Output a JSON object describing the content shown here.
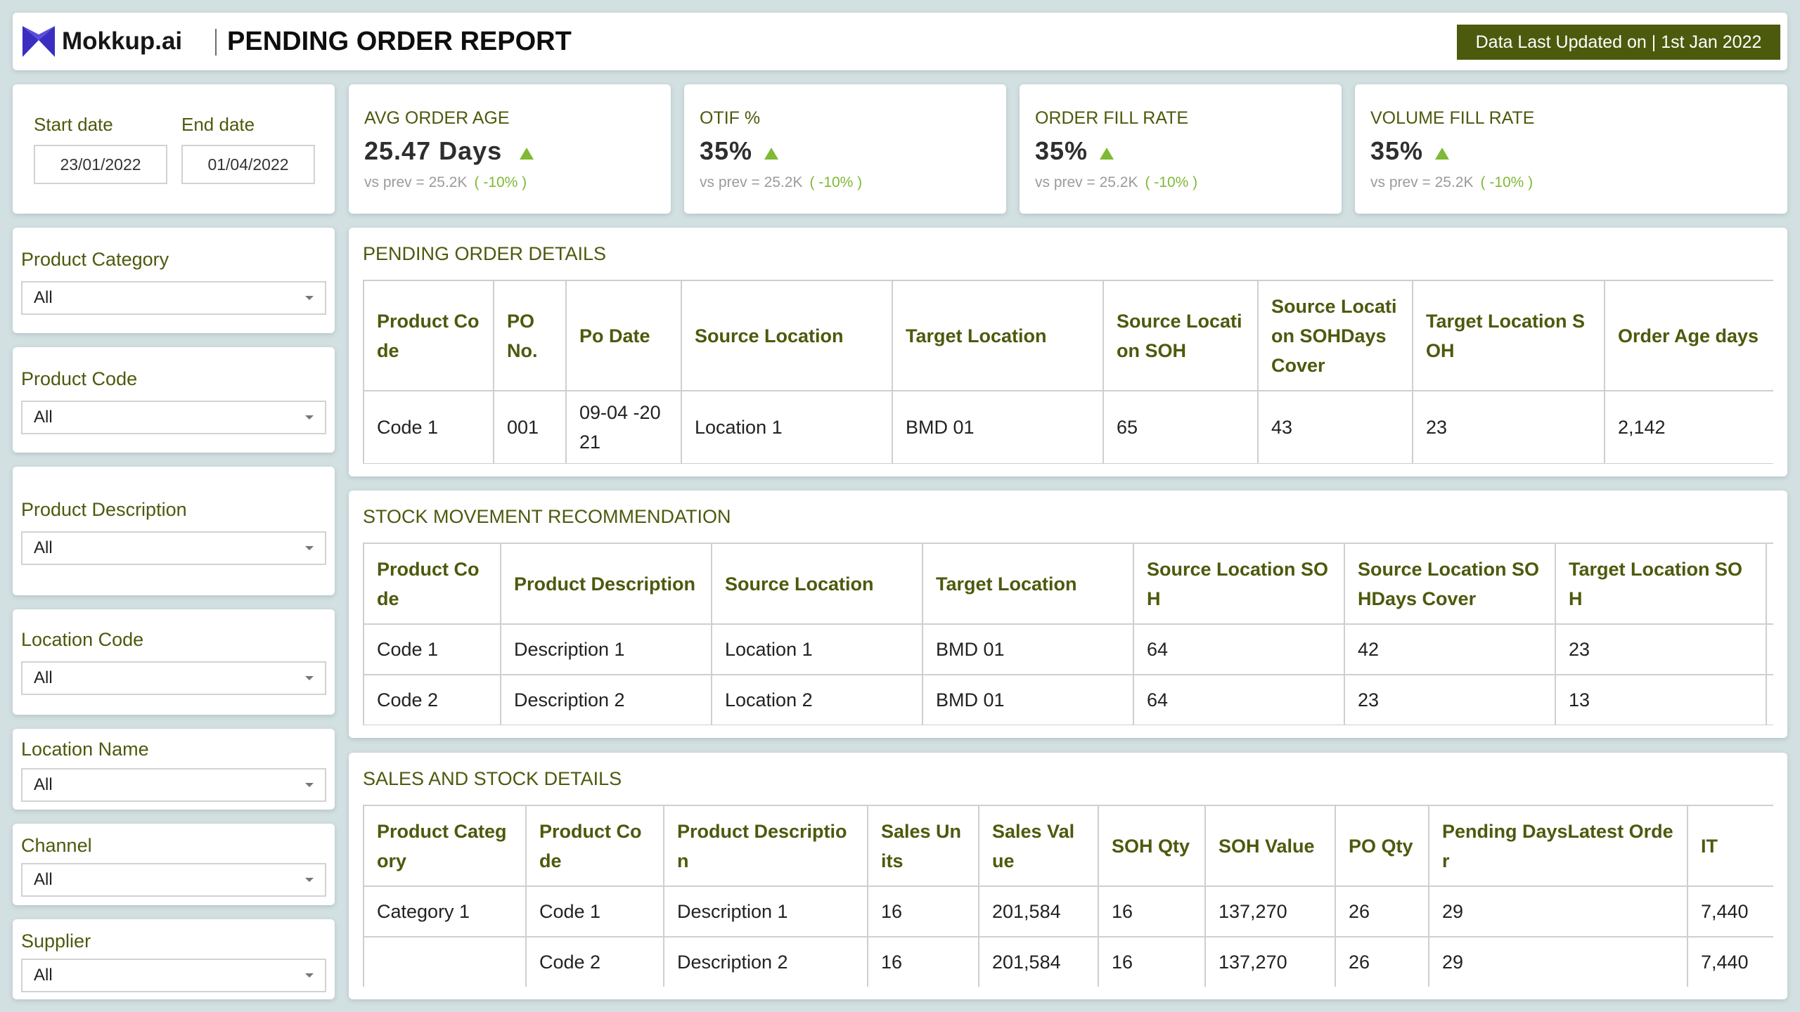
{
  "header": {
    "brand": "Mokkup.ai",
    "title": "PENDING ORDER REPORT",
    "last_updated": "Data Last Updated on | 1st Jan 2022"
  },
  "dates": {
    "start_label": "Start date",
    "start_value": "23/01/2022",
    "end_label": "End date",
    "end_value": "01/04/2022"
  },
  "kpis": [
    {
      "label": "AVG ORDER AGE",
      "value": "25.47 Days",
      "prev_text": "vs prev =  25.2K",
      "change": "( -10% )"
    },
    {
      "label": "OTIF %",
      "value": "35%",
      "prev_text": "vs prev =  25.2K",
      "change": "( -10% )"
    },
    {
      "label": "ORDER FILL RATE",
      "value": "35%",
      "prev_text": "vs prev =  25.2K",
      "change": "( -10% )"
    },
    {
      "label": "VOLUME FILL RATE",
      "value": "35%",
      "prev_text": "vs prev =  25.2K",
      "change": "( -10% )"
    }
  ],
  "filters": [
    {
      "label": "Product Category",
      "value": "All"
    },
    {
      "label": "Product Code",
      "value": "All"
    },
    {
      "label": "Product Description",
      "value": "All"
    },
    {
      "label": "Location Code",
      "value": "All"
    },
    {
      "label": "Location Name",
      "value": "All"
    },
    {
      "label": "Channel",
      "value": "All"
    },
    {
      "label": "Supplier",
      "value": "All"
    }
  ],
  "pending_orders": {
    "title": "PENDING ORDER DETAILS",
    "headers": [
      "Product Co de",
      "PO No.",
      "Po Date",
      "Source Location",
      "Target Location",
      "Source Locati on SOH",
      "Source Locati on SOHDays Cover",
      "Target Location S OH",
      "Order Age days"
    ],
    "rows": [
      [
        "Code 1",
        "001",
        "09-04 -20 21",
        "Location 1",
        "BMD 01",
        "65",
        "43",
        "23",
        "2,142"
      ]
    ]
  },
  "stock_movement": {
    "title": "STOCK MOVEMENT RECOMMENDATION",
    "headers": [
      "Product Co de",
      "Product Description",
      "Source Location",
      "Target Location",
      "Source Location SO H",
      "Source Location SO HDays Cover",
      "Target Location SO H"
    ],
    "rows": [
      [
        "Code 1",
        "Description 1",
        "Location 1",
        "BMD 01",
        "64",
        "42",
        "23"
      ],
      [
        "Code 2",
        "Description 2",
        "Location 2",
        "BMD 01",
        "64",
        "23",
        "13"
      ]
    ]
  },
  "sales_stock": {
    "title": "SALES AND STOCK DETAILS",
    "headers": [
      "Product Categ ory",
      "Product Co de",
      "Product Descriptio n",
      "Sales Un its",
      "Sales Val ue",
      "SOH Qty",
      "SOH Value",
      "PO Qty",
      "Pending DaysLatest Orde r",
      "IT"
    ],
    "rows": [
      [
        "Category 1",
        "Code 1",
        "Description 1",
        "16",
        "201,584",
        "16",
        "137,270",
        "26",
        "29",
        "7,440"
      ],
      [
        "",
        "Code 2",
        "Description 2",
        "16",
        "201,584",
        "16",
        "137,270",
        "26",
        "29",
        "7,440"
      ]
    ]
  },
  "colors": {
    "accent": "#4c5a0d",
    "positive": "#7fb935",
    "background": "#d3e0e2",
    "logo": "#3b2dbf"
  }
}
